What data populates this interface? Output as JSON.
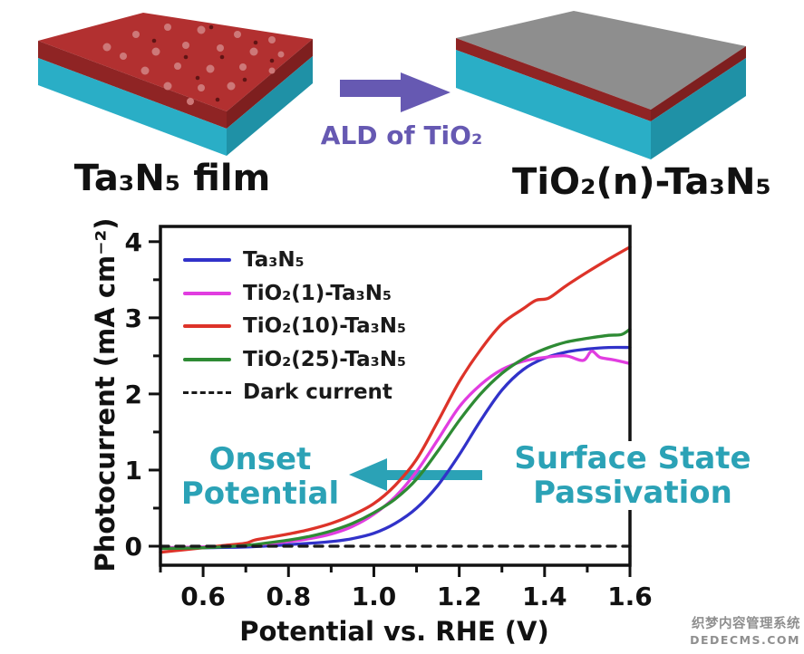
{
  "illustration": {
    "left_label": "Ta₃N₅ film",
    "right_label": "TiO₂(n)-Ta₃N₅",
    "arrow_label": "ALD of TiO₂"
  },
  "annotations": {
    "onset_line1": "Onset",
    "onset_line2": "Potential",
    "surface_line1": "Surface State",
    "surface_line2": "Passivation"
  },
  "watermark": {
    "line1": "织梦内容管理系统",
    "line2": "DEDECMS.COM"
  },
  "colors": {
    "teal": "#2ba2b6",
    "purple": "#6659b2",
    "slab_red_top": "#b23030",
    "slab_red_side": "#8f2424",
    "slab_red_side_dark": "#7e1f1f",
    "slab_teal": "#2aaec6",
    "slab_teal_dark": "#1f91a6",
    "slab_gray": "#8e8e8e",
    "dot_light": "#cd7878",
    "dot_dark": "#601414",
    "axis": "#111111"
  },
  "chart_data": {
    "type": "line",
    "title": "",
    "xlabel": "Potential vs. RHE (V)",
    "ylabel": "Photocurrent (mA cm⁻²)",
    "xlim": [
      0.5,
      1.6
    ],
    "ylim": [
      -0.25,
      4.2
    ],
    "grid": false,
    "legend_position": "top-left",
    "x_major_ticks": [
      0.6,
      0.8,
      1.0,
      1.2,
      1.4,
      1.6
    ],
    "x_tick_labels": [
      "0.6",
      "0.8",
      "1.0",
      "1.2",
      "1.4",
      "1.6"
    ],
    "x_minor_ticks": [
      0.5,
      0.7,
      0.9,
      1.1,
      1.3,
      1.5
    ],
    "y_major_ticks": [
      0,
      1,
      2,
      3,
      4
    ],
    "y_tick_labels": [
      "0",
      "1",
      "2",
      "3",
      "4"
    ],
    "y_minor_ticks": [
      0.5,
      1.5,
      2.5,
      3.5
    ],
    "series": [
      {
        "name": "Ta₃N₅",
        "color": "#3132c9",
        "style": "solid",
        "points": [
          [
            0.5,
            -0.03
          ],
          [
            0.6,
            -0.02
          ],
          [
            0.7,
            -0.01
          ],
          [
            0.8,
            0.02
          ],
          [
            0.9,
            0.06
          ],
          [
            0.95,
            0.1
          ],
          [
            1.0,
            0.17
          ],
          [
            1.05,
            0.3
          ],
          [
            1.1,
            0.5
          ],
          [
            1.15,
            0.8
          ],
          [
            1.2,
            1.2
          ],
          [
            1.25,
            1.65
          ],
          [
            1.3,
            2.05
          ],
          [
            1.35,
            2.32
          ],
          [
            1.4,
            2.47
          ],
          [
            1.45,
            2.55
          ],
          [
            1.5,
            2.59
          ],
          [
            1.55,
            2.61
          ],
          [
            1.6,
            2.61
          ]
        ]
      },
      {
        "name": "TiO₂(1)-Ta₃N₅",
        "color": "#e13de0",
        "style": "solid",
        "points": [
          [
            0.5,
            -0.02
          ],
          [
            0.6,
            -0.01
          ],
          [
            0.7,
            0.01
          ],
          [
            0.8,
            0.06
          ],
          [
            0.85,
            0.1
          ],
          [
            0.9,
            0.16
          ],
          [
            0.95,
            0.26
          ],
          [
            1.0,
            0.42
          ],
          [
            1.05,
            0.65
          ],
          [
            1.1,
            0.98
          ],
          [
            1.15,
            1.4
          ],
          [
            1.2,
            1.83
          ],
          [
            1.25,
            2.12
          ],
          [
            1.3,
            2.32
          ],
          [
            1.35,
            2.43
          ],
          [
            1.4,
            2.48
          ],
          [
            1.45,
            2.5
          ],
          [
            1.49,
            2.44
          ],
          [
            1.51,
            2.56
          ],
          [
            1.53,
            2.48
          ],
          [
            1.56,
            2.45
          ],
          [
            1.6,
            2.4
          ]
        ]
      },
      {
        "name": "TiO₂(10)-Ta₃N₅",
        "color": "#dd3329",
        "style": "solid",
        "points": [
          [
            0.5,
            -0.08
          ],
          [
            0.55,
            -0.05
          ],
          [
            0.6,
            -0.02
          ],
          [
            0.65,
            0.01
          ],
          [
            0.7,
            0.04
          ],
          [
            0.72,
            0.08
          ],
          [
            0.75,
            0.11
          ],
          [
            0.8,
            0.16
          ],
          [
            0.85,
            0.22
          ],
          [
            0.9,
            0.3
          ],
          [
            0.95,
            0.41
          ],
          [
            1.0,
            0.56
          ],
          [
            1.05,
            0.8
          ],
          [
            1.1,
            1.14
          ],
          [
            1.15,
            1.64
          ],
          [
            1.2,
            2.16
          ],
          [
            1.25,
            2.58
          ],
          [
            1.3,
            2.92
          ],
          [
            1.35,
            3.12
          ],
          [
            1.38,
            3.23
          ],
          [
            1.41,
            3.26
          ],
          [
            1.45,
            3.42
          ],
          [
            1.5,
            3.6
          ],
          [
            1.55,
            3.77
          ],
          [
            1.6,
            3.93
          ]
        ]
      },
      {
        "name": "TiO₂(25)-Ta₃N₅",
        "color": "#2e8b34",
        "style": "solid",
        "points": [
          [
            0.5,
            -0.03
          ],
          [
            0.6,
            -0.02
          ],
          [
            0.7,
            0.01
          ],
          [
            0.8,
            0.08
          ],
          [
            0.85,
            0.13
          ],
          [
            0.9,
            0.2
          ],
          [
            0.95,
            0.3
          ],
          [
            1.0,
            0.44
          ],
          [
            1.05,
            0.62
          ],
          [
            1.1,
            0.88
          ],
          [
            1.15,
            1.25
          ],
          [
            1.2,
            1.65
          ],
          [
            1.25,
            2.0
          ],
          [
            1.3,
            2.27
          ],
          [
            1.35,
            2.46
          ],
          [
            1.4,
            2.59
          ],
          [
            1.45,
            2.68
          ],
          [
            1.5,
            2.73
          ],
          [
            1.55,
            2.77
          ],
          [
            1.58,
            2.78
          ],
          [
            1.6,
            2.85
          ]
        ]
      },
      {
        "name": "Dark current",
        "color": "#1a1a1a",
        "style": "dashed",
        "points": [
          [
            0.5,
            0.0
          ],
          [
            1.6,
            0.0
          ]
        ]
      }
    ]
  }
}
